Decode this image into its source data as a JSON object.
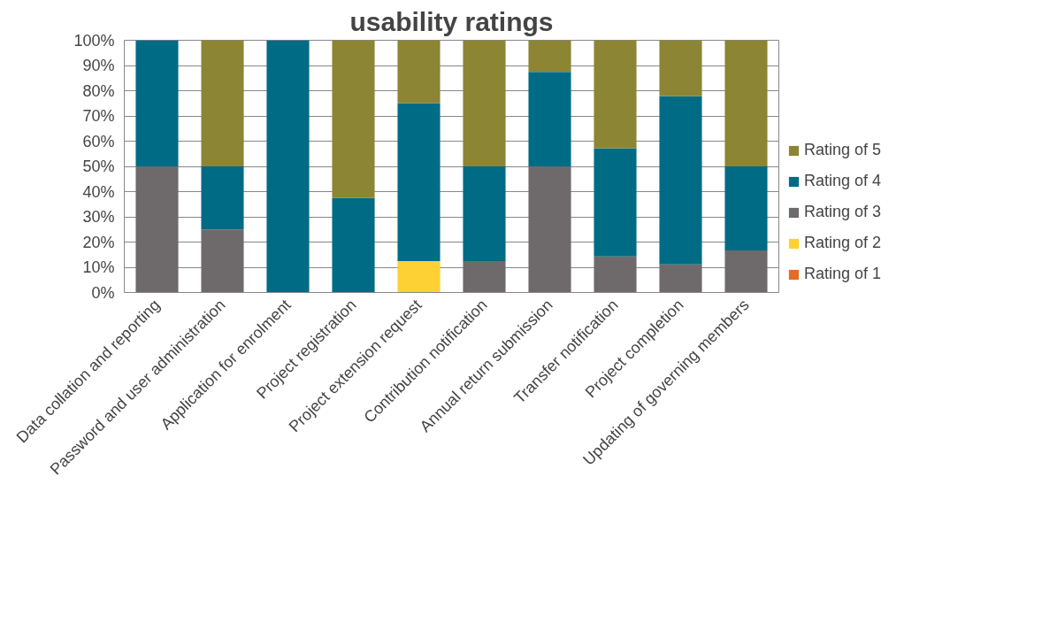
{
  "chart_data": {
    "type": "bar",
    "stacked": true,
    "title": "usability ratings",
    "categories": [
      "Data collation and reporting",
      "Password and user administration",
      "Application for enrolment",
      "Project registration",
      "Project extension request",
      "Contribution notification",
      "Annual return submission",
      "Transfer notification",
      "Project completion",
      "Updating of governing members"
    ],
    "series": [
      {
        "name": "Rating of 1",
        "color": "#e46c24",
        "values": [
          0,
          0,
          0,
          0,
          0,
          0,
          0,
          0,
          0,
          0
        ]
      },
      {
        "name": "Rating of 2",
        "color": "#fdd033",
        "values": [
          0,
          0,
          0,
          0,
          12.5,
          0,
          0,
          0,
          0,
          0
        ]
      },
      {
        "name": "Rating of 3",
        "color": "#6e6a6b",
        "values": [
          50,
          25,
          0,
          0,
          0,
          12.5,
          50,
          14.3,
          11.1,
          16.7
        ]
      },
      {
        "name": "Rating of 4",
        "color": "#006b85",
        "values": [
          50,
          25,
          100,
          37.5,
          62.5,
          37.5,
          37.5,
          42.9,
          66.7,
          33.3
        ]
      },
      {
        "name": "Rating of 5",
        "color": "#8b8534",
        "values": [
          0,
          50,
          0,
          62.5,
          25,
          50,
          12.5,
          42.8,
          22.2,
          50
        ]
      }
    ],
    "ylim": [
      0,
      100
    ],
    "yticks": [
      {
        "value": 0,
        "label": "0%"
      },
      {
        "value": 10,
        "label": "10%"
      },
      {
        "value": 20,
        "label": "20%"
      },
      {
        "value": 30,
        "label": "30%"
      },
      {
        "value": 40,
        "label": "40%"
      },
      {
        "value": 50,
        "label": "50%"
      },
      {
        "value": 60,
        "label": "60%"
      },
      {
        "value": 70,
        "label": "70%"
      },
      {
        "value": 80,
        "label": "80%"
      },
      {
        "value": 90,
        "label": "90%"
      },
      {
        "value": 100,
        "label": "100%"
      }
    ],
    "grid": "y",
    "legend": "right"
  }
}
